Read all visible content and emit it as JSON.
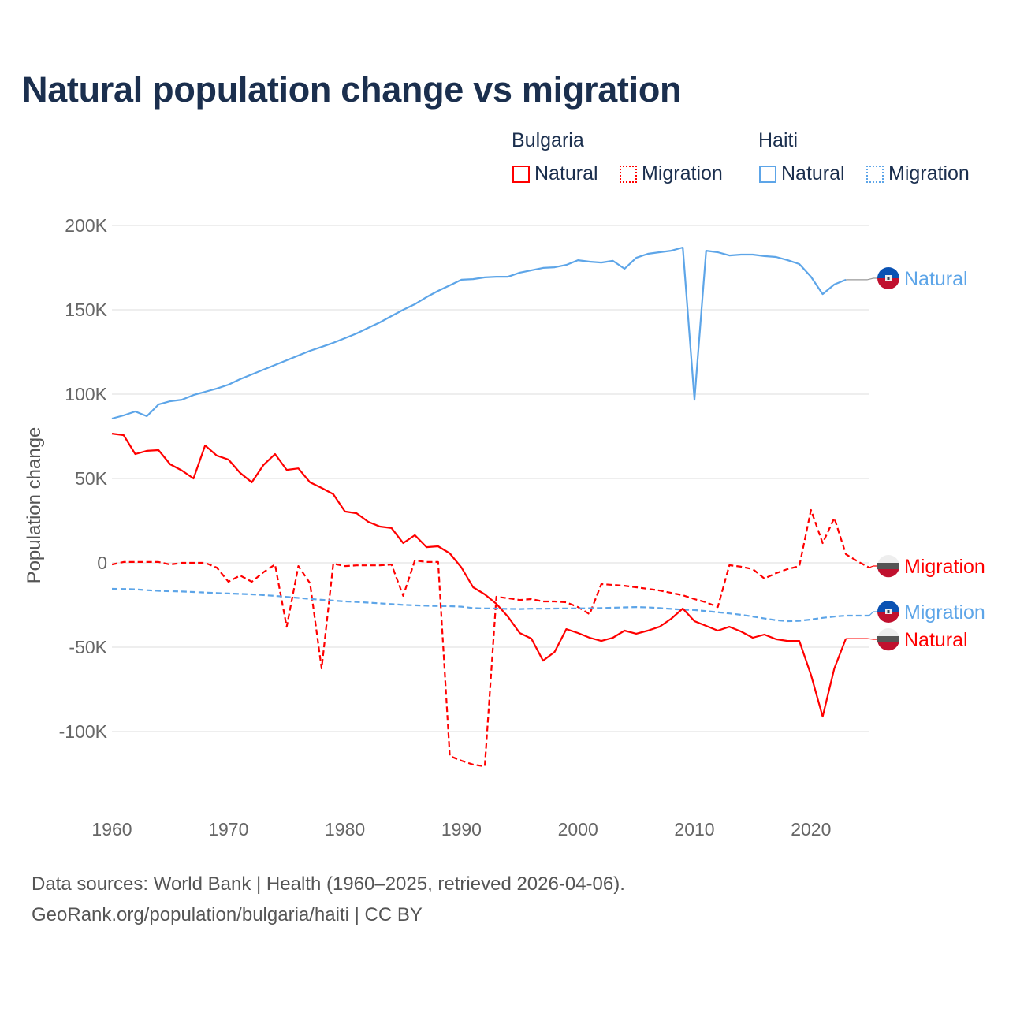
{
  "title": "Natural population change vs migration",
  "legend": {
    "groups": [
      {
        "label": "Bulgaria",
        "items": [
          {
            "label": "Natural",
            "style": "solid",
            "color": "#ff0000"
          },
          {
            "label": "Migration",
            "style": "dotted",
            "color": "#ff0000"
          }
        ]
      },
      {
        "label": "Haiti",
        "items": [
          {
            "label": "Natural",
            "style": "solid",
            "color": "#5da5e8"
          },
          {
            "label": "Migration",
            "style": "dotted",
            "color": "#5da5e8"
          }
        ]
      }
    ]
  },
  "footer": {
    "line1": "Data sources: World Bank | Health (1960–2025, retrieved 2026-04-06).",
    "line2": "GeoRank.org/population/bulgaria/haiti | CC BY"
  },
  "chart_data": {
    "type": "line",
    "title": "Natural population change vs migration",
    "xlabel": "",
    "ylabel": "Population change",
    "xlim": [
      1960,
      2025
    ],
    "ylim": [
      -130000,
      215000
    ],
    "x_ticks": [
      1960,
      1970,
      1980,
      1990,
      2000,
      2010,
      2020
    ],
    "x_tick_labels": [
      "1960",
      "1970",
      "1980",
      "1990",
      "2000",
      "2010",
      "2020"
    ],
    "y_ticks": [
      200000,
      150000,
      100000,
      50000,
      0,
      -50000,
      -100000
    ],
    "y_tick_labels": [
      "200K",
      "150K",
      "100K",
      "50K",
      "0",
      "-50K",
      "-100K"
    ],
    "grid": true,
    "legend_position": "top-right",
    "units": "thousands",
    "series": [
      {
        "name": "Haiti Natural",
        "end_label": "Natural",
        "country": "Haiti",
        "color": "#5da5e8",
        "dash": "solid",
        "start_year": 1960,
        "values": [
          85.5,
          87.4,
          89.7,
          86.9,
          93.9,
          95.8,
          96.7,
          99.5,
          101.4,
          103.3,
          105.6,
          108.9,
          111.7,
          114.5,
          117.3,
          120.1,
          122.9,
          125.7,
          128,
          130.4,
          133.2,
          136,
          139.3,
          142.5,
          146.3,
          150,
          153.3,
          157.5,
          161.2,
          164.5,
          167.8,
          168.2,
          169.2,
          169.6,
          169.6,
          172,
          173.4,
          174.8,
          175.2,
          176.6,
          179.4,
          178.5,
          178,
          179,
          174.3,
          180.8,
          183.2,
          184.1,
          185,
          186.9,
          96.7,
          185,
          184.1,
          182.2,
          182.7,
          182.7,
          181.8,
          181.3,
          179.4,
          177.1,
          169.6,
          159.3,
          165,
          167.8
        ]
      },
      {
        "name": "Bulgaria Migration",
        "end_label": "Migration",
        "country": "Bulgaria",
        "color": "#ff0000",
        "dash": "dashed",
        "start_year": 1960,
        "values": [
          -1,
          0.5,
          0.5,
          0.5,
          0.5,
          -1,
          0,
          0,
          0,
          -2.8,
          -11.2,
          -7.5,
          -11.2,
          -5.6,
          -1,
          -37.9,
          -1.9,
          -12.1,
          -62.6,
          -0.5,
          -1.9,
          -1.5,
          -1.5,
          -1.5,
          -1,
          -19.6,
          1.4,
          0.5,
          0.5,
          -114.5,
          -117.3,
          -119.6,
          -120.6,
          -20.1,
          -21,
          -22,
          -21.5,
          -22.9,
          -22.9,
          -23.4,
          -26.2,
          -30.4,
          -12.6,
          -13.1,
          -13.6,
          -14.5,
          -15.4,
          -16.4,
          -17.8,
          -19.2,
          -21.5,
          -23.4,
          -26.2,
          -1.4,
          -2.3,
          -3.7,
          -9.3,
          -6.1,
          -3.7,
          -1.9,
          31.3,
          11.7,
          26.6,
          5.1,
          0.9,
          -2.8
        ]
      },
      {
        "name": "Haiti Migration",
        "end_label": "Migration",
        "country": "Haiti",
        "color": "#5da5e8",
        "dash": "dashed",
        "start_year": 1960,
        "values": [
          -15.4,
          -15.5,
          -15.7,
          -16.2,
          -16.6,
          -16.8,
          -17,
          -17.3,
          -17.6,
          -17.9,
          -18.2,
          -18.4,
          -18.7,
          -19.1,
          -19.6,
          -20.2,
          -20.8,
          -21.4,
          -21.9,
          -22.4,
          -22.9,
          -23.2,
          -23.6,
          -24,
          -24.5,
          -24.9,
          -25.2,
          -25.4,
          -25.6,
          -25.7,
          -26,
          -26.8,
          -27,
          -27.1,
          -27.3,
          -27.4,
          -27.2,
          -27.2,
          -27.1,
          -27,
          -27,
          -26.9,
          -26.8,
          -26.6,
          -26.4,
          -26.2,
          -26.4,
          -26.8,
          -27.3,
          -27.8,
          -28,
          -28.6,
          -29.3,
          -30,
          -30.8,
          -31.8,
          -33,
          -34,
          -34.6,
          -34.4,
          -33.6,
          -32.6,
          -31.8,
          -31.3,
          -31.3,
          -31.3
        ]
      },
      {
        "name": "Bulgaria Natural",
        "end_label": "Natural",
        "country": "Bulgaria",
        "color": "#ff0000",
        "dash": "solid",
        "start_year": 1960,
        "values": [
          76.6,
          75.7,
          64.5,
          66.4,
          66.8,
          58.4,
          54.7,
          50,
          69.6,
          63.6,
          61.2,
          53.3,
          47.7,
          57.9,
          64.5,
          55.1,
          56,
          47.7,
          44.4,
          40.7,
          30.4,
          29.4,
          24.3,
          21.5,
          20.6,
          11.7,
          16.4,
          9.3,
          9.8,
          5.6,
          -2.8,
          -14.5,
          -18.7,
          -24.3,
          -32,
          -41.6,
          -44.9,
          -58,
          -52.8,
          -39.3,
          -41.6,
          -44.4,
          -46.3,
          -44.4,
          -40.2,
          -42,
          -40.2,
          -37.9,
          -33.2,
          -27.1,
          -34.6,
          -37.4,
          -40.2,
          -37.9,
          -40.7,
          -44.4,
          -42.5,
          -45.3,
          -46.3,
          -46.3,
          -66.4,
          -91.1,
          -62.6,
          -44.9
        ]
      }
    ]
  }
}
